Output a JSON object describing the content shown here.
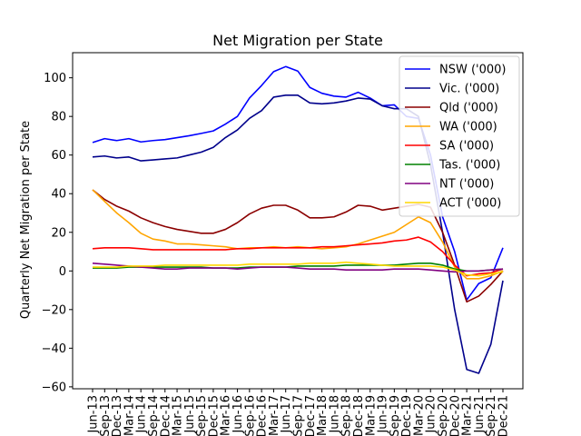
{
  "chart_data": {
    "type": "line",
    "title": "Net Migration per State",
    "xlabel": "",
    "ylabel": "Quarterly Net Migration per State",
    "ylim": [
      -61,
      113
    ],
    "yticks": [
      -60,
      -40,
      -20,
      0,
      20,
      40,
      60,
      80,
      100
    ],
    "grid": false,
    "legend_position": "top-right",
    "categories": [
      "Jun-13",
      "Sep-13",
      "Dec-13",
      "Mar-14",
      "Jun-14",
      "Sep-14",
      "Dec-14",
      "Mar-15",
      "Jun-15",
      "Sep-15",
      "Dec-15",
      "Mar-16",
      "Jun-16",
      "Sep-16",
      "Dec-16",
      "Mar-17",
      "Jun-17",
      "Sep-17",
      "Dec-17",
      "Mar-18",
      "Jun-18",
      "Sep-18",
      "Dec-18",
      "Mar-19",
      "Jun-19",
      "Sep-19",
      "Dec-19",
      "Mar-20",
      "Jun-20",
      "Sep-20",
      "Dec-20",
      "Mar-21",
      "Jun-21",
      "Sep-21",
      "Dec-21"
    ],
    "tick_labels": [
      "Jun-13",
      "Sep-13",
      "Dec-13",
      "Mar-14",
      "Jun-14",
      "Sep-14",
      "Dec-14",
      "Mar-15",
      "Jun-15",
      "Sep-15",
      "Dec-15",
      "Mar-16",
      "Jun-16",
      "Sep-16",
      "Dec-16",
      "Mar-17",
      "Jun-17",
      "Sep-17",
      "Dec-17",
      "Mar-18",
      "Jun-18",
      "Sep-18",
      "Dec-18",
      "Mar-19",
      "Jun-19",
      "Sep-19",
      "Dec-19",
      "Mar-20",
      "Jun-20",
      "Sep-20",
      "Dec-20",
      "Mar-21",
      "Jun-21",
      "Sep-21",
      "Dec-21"
    ],
    "series": [
      {
        "name": "NSW ('000)",
        "color": "#0000ff",
        "values": [
          66.5,
          68.5,
          67.5,
          68.5,
          66.8,
          67.5,
          68.0,
          69.0,
          70.0,
          71.2,
          72.5,
          76.0,
          80.0,
          89.5,
          96.0,
          103.2,
          105.8,
          103.5,
          95.0,
          92.0,
          90.5,
          90.0,
          92.5,
          89.5,
          85.5,
          86.0,
          80.0,
          79.0,
          60.0,
          28.0,
          10.0,
          -15.0,
          -6.5,
          -3.5,
          12.0
        ]
      },
      {
        "name": "Vic. ('000)",
        "color": "#00008b",
        "values": [
          59.0,
          59.5,
          58.5,
          59.0,
          57.0,
          57.5,
          58.0,
          58.5,
          60.0,
          61.5,
          64.0,
          69.0,
          73.0,
          79.0,
          83.0,
          90.0,
          91.0,
          91.0,
          87.0,
          86.5,
          87.0,
          88.0,
          89.5,
          89.0,
          85.5,
          84.0,
          84.0,
          80.0,
          55.0,
          20.0,
          -20.0,
          -51.0,
          -53.0,
          -38.0,
          -5.0
        ]
      },
      {
        "name": "Qld ('000)",
        "color": "#8b0000",
        "values": [
          42.0,
          37.0,
          33.5,
          31.0,
          27.5,
          25.0,
          23.0,
          21.5,
          20.5,
          19.5,
          19.5,
          21.5,
          25.0,
          29.5,
          32.5,
          34.0,
          34.0,
          31.5,
          27.5,
          27.5,
          28.0,
          30.5,
          34.0,
          33.5,
          31.5,
          32.5,
          33.5,
          34.5,
          33.0,
          20.0,
          3.0,
          -16.0,
          -13.0,
          -7.0,
          0.0
        ]
      },
      {
        "name": "WA ('000)",
        "color": "#ffa500",
        "values": [
          42.0,
          36.0,
          30.0,
          25.0,
          19.5,
          16.5,
          15.5,
          14.0,
          14.0,
          13.5,
          13.0,
          12.5,
          11.5,
          12.0,
          12.0,
          12.5,
          12.0,
          12.5,
          12.0,
          11.5,
          12.0,
          12.5,
          14.0,
          16.0,
          18.0,
          20.0,
          24.0,
          28.0,
          25.0,
          15.0,
          2.0,
          -4.0,
          -4.0,
          -2.5,
          0.0
        ]
      },
      {
        "name": "SA ('000)",
        "color": "#ff0000",
        "values": [
          11.5,
          12.0,
          12.0,
          12.0,
          11.5,
          11.0,
          11.0,
          11.0,
          11.0,
          11.0,
          11.0,
          11.0,
          11.5,
          11.5,
          12.0,
          12.0,
          12.0,
          12.0,
          12.0,
          12.5,
          12.5,
          13.0,
          13.5,
          14.0,
          14.5,
          15.5,
          16.0,
          17.5,
          15.0,
          10.0,
          3.0,
          -2.5,
          -1.5,
          -1.0,
          1.0
        ]
      },
      {
        "name": "Tas. ('000)",
        "color": "#008000",
        "values": [
          1.5,
          1.5,
          1.5,
          2.0,
          2.0,
          2.0,
          2.0,
          2.0,
          2.0,
          2.0,
          1.5,
          1.5,
          1.5,
          2.0,
          2.0,
          2.0,
          2.0,
          2.5,
          2.5,
          2.5,
          2.5,
          3.0,
          3.0,
          3.0,
          3.0,
          3.0,
          3.5,
          4.0,
          4.0,
          3.0,
          1.0,
          0.0,
          0.0,
          0.5,
          1.0
        ]
      },
      {
        "name": "NT ('000)",
        "color": "#800080",
        "values": [
          4.0,
          3.5,
          3.0,
          2.5,
          2.0,
          1.5,
          1.0,
          1.0,
          1.5,
          1.5,
          1.5,
          1.5,
          1.0,
          1.5,
          2.0,
          2.0,
          2.0,
          1.5,
          1.0,
          1.0,
          1.0,
          0.5,
          0.5,
          0.5,
          0.5,
          1.0,
          1.0,
          1.0,
          0.5,
          0.0,
          -0.5,
          0.0,
          0.0,
          0.5,
          1.0
        ]
      },
      {
        "name": "ACT ('000)",
        "color": "#ffd700",
        "values": [
          2.0,
          2.0,
          2.0,
          2.5,
          2.5,
          2.5,
          3.0,
          3.0,
          3.0,
          3.0,
          3.0,
          3.0,
          3.0,
          3.5,
          3.5,
          3.5,
          3.5,
          3.5,
          4.0,
          4.0,
          4.0,
          4.5,
          4.0,
          3.5,
          3.0,
          2.5,
          2.5,
          2.5,
          2.5,
          2.0,
          0.5,
          -2.0,
          -2.5,
          -1.5,
          -0.5
        ]
      }
    ]
  }
}
